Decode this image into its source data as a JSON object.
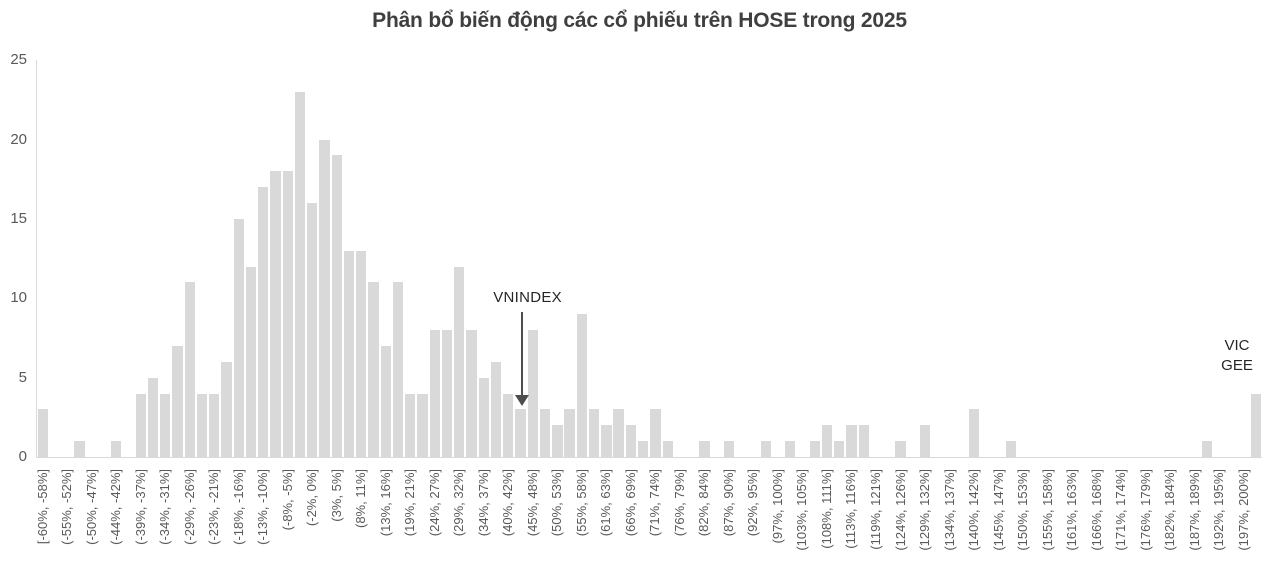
{
  "title": "Phân bổ biến động các cổ phiếu trên HOSE trong 2025",
  "chart_data": {
    "type": "bar",
    "title": "Phân bổ biến động các cổ phiếu trên HOSE trong 2025",
    "xlabel": "",
    "ylabel": "",
    "ylim": [
      0,
      25
    ],
    "y_ticks": [
      0,
      5,
      10,
      15,
      20,
      25
    ],
    "grid": false,
    "legend": "none",
    "bar_color": "#d9d9d9",
    "num_bins": 100,
    "labels_shown_every_nth_bin": 2,
    "bin_labels": [
      "[-60%, -58%]",
      "(-55%, -52%]",
      "(-50%, -47%]",
      "(-44%, -42%]",
      "(-39%, -37%]",
      "(-34%, -31%]",
      "(-29%, -26%]",
      "(-23%, -21%]",
      "(-18%, -16%]",
      "(-13%, -10%]",
      "(-8%, -5%]",
      "(-2%, 0%]",
      "(3%, 5%]",
      "(8%, 11%]",
      "(13%, 16%]",
      "(19%, 21%]",
      "(24%, 27%]",
      "(29%, 32%]",
      "(34%, 37%]",
      "(40%, 42%]",
      "(45%, 48%]",
      "(50%, 53%]",
      "(55%, 58%]",
      "(61%, 63%]",
      "(66%, 69%]",
      "(71%, 74%]",
      "(76%, 79%]",
      "(82%, 84%]",
      "(87%, 90%]",
      "(92%, 95%]",
      "(97%, 100%]",
      "(103%, 105%]",
      "(108%, 111%]",
      "(113%, 116%]",
      "(119%, 121%]",
      "(124%, 126%]",
      "(129%, 132%]",
      "(134%, 137%]",
      "(140%, 142%]",
      "(145%, 147%]",
      "(150%, 153%]",
      "(155%, 158%]",
      "(161%, 163%]",
      "(166%, 168%]",
      "(171%, 174%]",
      "(176%, 179%]",
      "(182%, 184%]",
      "(187%, 189%]",
      "(192%, 195%]",
      "(197%, 200%]"
    ],
    "values": [
      3,
      0,
      0,
      1,
      0,
      0,
      1,
      0,
      4,
      5,
      4,
      7,
      11,
      4,
      4,
      6,
      15,
      12,
      17,
      18,
      18,
      23,
      16,
      20,
      19,
      13,
      13,
      11,
      7,
      11,
      4,
      4,
      8,
      8,
      12,
      8,
      5,
      6,
      4,
      3,
      8,
      3,
      2,
      3,
      9,
      3,
      2,
      3,
      2,
      1,
      3,
      1,
      0,
      0,
      1,
      0,
      1,
      0,
      0,
      1,
      0,
      1,
      0,
      1,
      2,
      1,
      2,
      2,
      0,
      0,
      1,
      0,
      2,
      0,
      0,
      0,
      3,
      0,
      0,
      1,
      0,
      0,
      0,
      0,
      0,
      0,
      0,
      0,
      0,
      0,
      0,
      0,
      0,
      0,
      0,
      1,
      0,
      0,
      0,
      4
    ],
    "annotations": [
      {
        "id": "vnindex",
        "text": "VNINDEX",
        "style": "arrow-down",
        "bar_index": 39
      },
      {
        "id": "vic-gee",
        "lines": [
          "VIC",
          "GEE"
        ],
        "style": "text",
        "position": "above-last-bar"
      }
    ]
  }
}
